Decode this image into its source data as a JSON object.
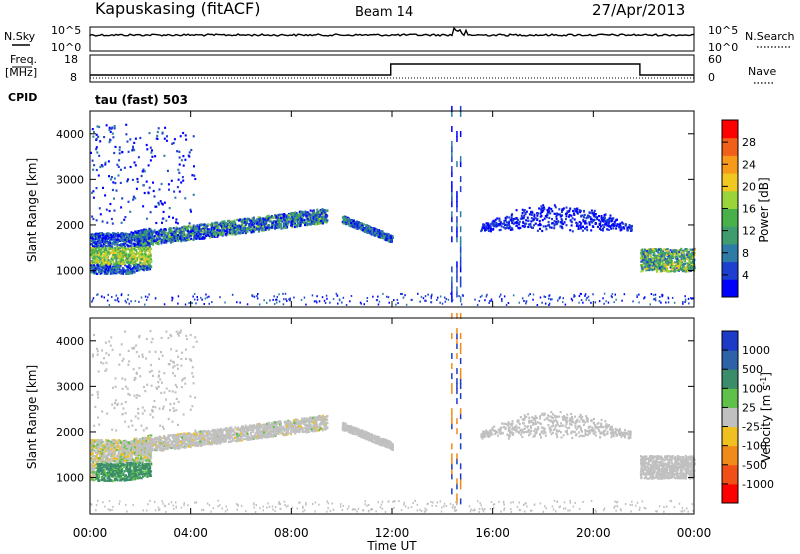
{
  "header": {
    "station": "Kapuskasing (fitACF)",
    "beam": "Beam 14",
    "date": "27/Apr/2013"
  },
  "top_panels": {
    "nsky_label": "N.Sky",
    "nsky_ticks": [
      "10^5",
      "10^0"
    ],
    "nsearch_label": "N.Search",
    "nsearch_ticks": [
      "10^5",
      "10^0"
    ],
    "freq_label": "Freq.",
    "freq_unit": "[MHz]",
    "freq_ticks": [
      "18",
      "8"
    ],
    "nave_label": "Nave",
    "nave_ticks": [
      "60",
      "0"
    ],
    "cpid_label": "CPID",
    "cpid_value": "tau (fast) 503"
  },
  "chart_data": [
    {
      "type": "heatmap",
      "name": "power",
      "ylabel": "Slant Range [km]",
      "ylim": [
        200,
        4500
      ],
      "yticks": [
        "4000",
        "3000",
        "2000",
        "1000"
      ],
      "colorbar_label": "Power [dB]",
      "colorbar_ticks": [
        "28",
        "24",
        "20",
        "16",
        "12",
        "8",
        "4"
      ],
      "colorbar_colors": [
        "#0000ff",
        "#1c3fd0",
        "#2e7ba8",
        "#3e9c6e",
        "#49b14a",
        "#9bd33a",
        "#f0c820",
        "#f79a1a",
        "#f06018",
        "#ff0000"
      ]
    },
    {
      "type": "heatmap",
      "name": "velocity",
      "ylabel": "Slant Range [km]",
      "ylim": [
        200,
        4500
      ],
      "yticks": [
        "4000",
        "3000",
        "2000",
        "1000"
      ],
      "colorbar_label": "Velocity [m s",
      "colorbar_label_sup": "-1",
      "colorbar_label_close": "]",
      "colorbar_ticks": [
        "1000",
        "500",
        "100",
        "25",
        "-25",
        "-100",
        "-500",
        "-1000"
      ],
      "colorbar_colors": [
        "#1c3cc8",
        "#2e62a8",
        "#3a8c6a",
        "#5fc04a",
        "#c0c0c0",
        "#f0c020",
        "#f08a18",
        "#f05018",
        "#ff0000"
      ],
      "xlabel": "Time UT",
      "xticks": [
        "00:00",
        "04:00",
        "08:00",
        "12:00",
        "16:00",
        "20:00",
        "00:00"
      ]
    }
  ]
}
